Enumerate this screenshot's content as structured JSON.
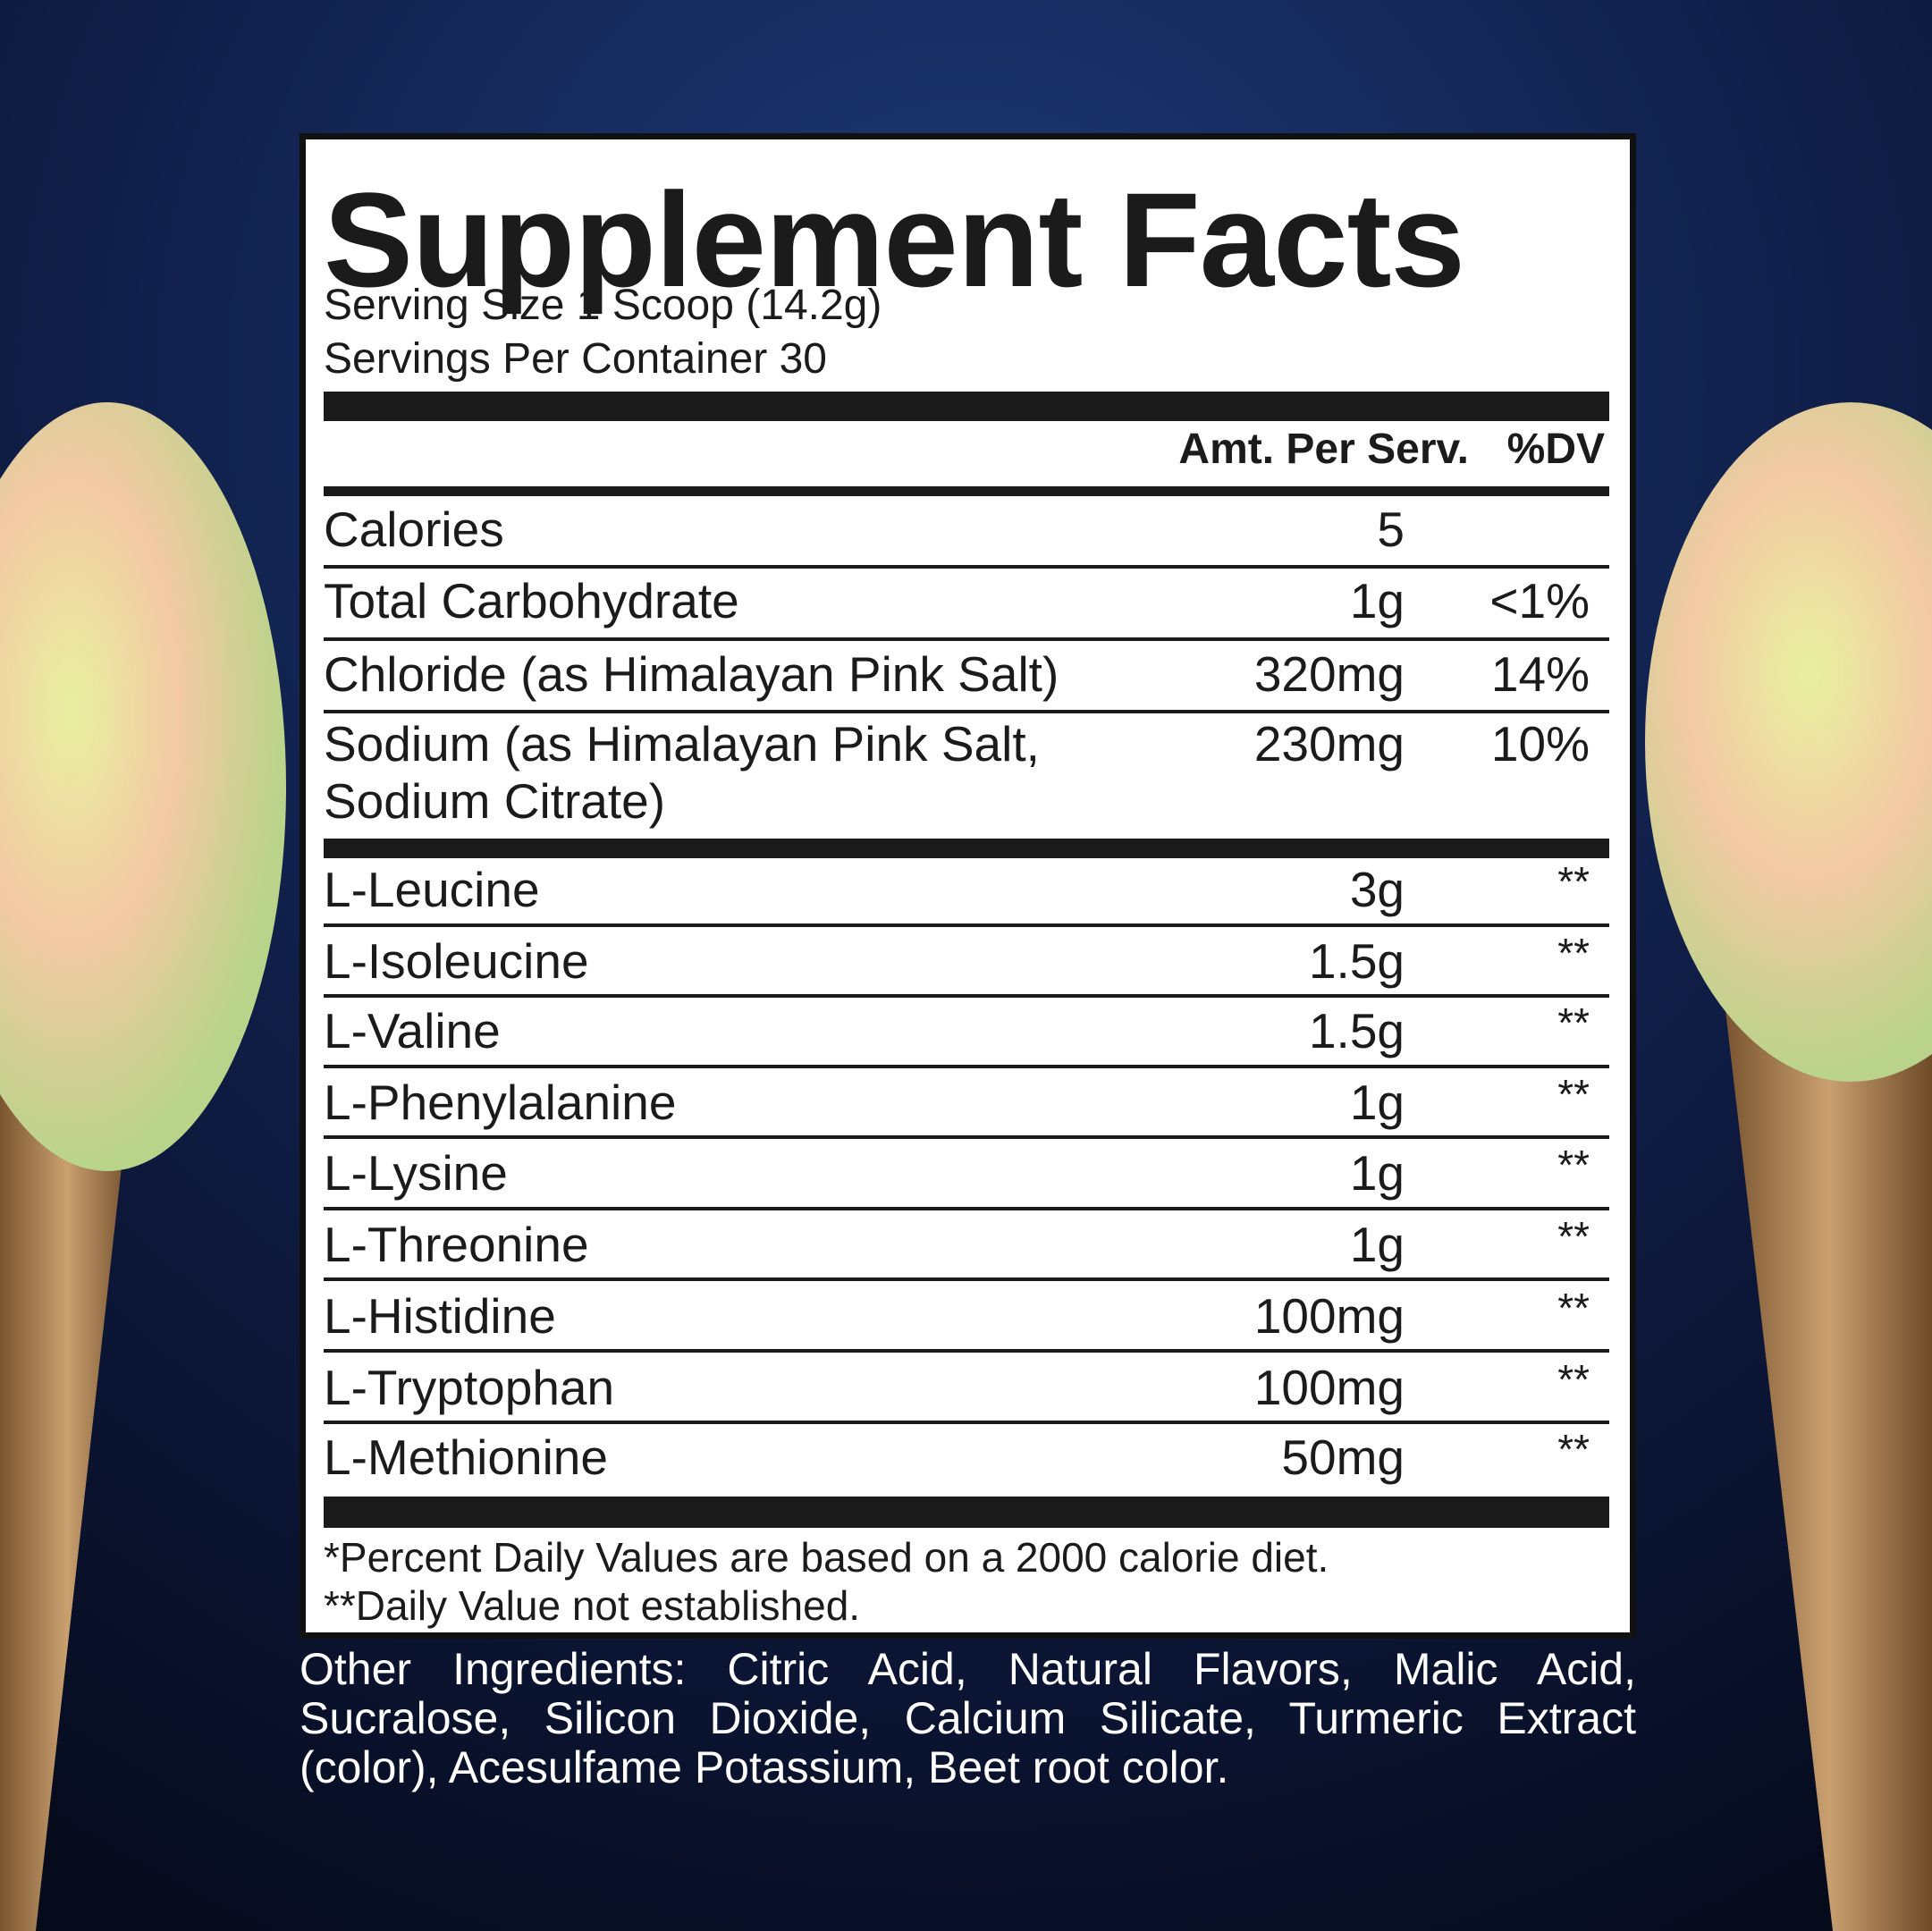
{
  "title": "Supplement Facts",
  "serving_size": "Serving Size 1 Scoop (14.2g)",
  "servings_per_container": "Servings Per Container 30",
  "header": {
    "amount": "Amt. Per Serv.",
    "dv": "%DV"
  },
  "rows": [
    {
      "name": "Calories",
      "amount": "5"
    },
    {
      "name": "Total Carbohydrate",
      "amount": "1g",
      "dv": "<1%"
    },
    {
      "name": "Chloride (as Himalayan Pink Salt)",
      "amount": "320mg",
      "dv": "14%"
    },
    {
      "name": [
        "Sodium (as Himalayan Pink Salt,",
        "Sodium Citrate)"
      ],
      "amount": "230mg",
      "dv": "10%"
    },
    {
      "name": "L-Leucine",
      "amount": "3g",
      "dv": "**"
    },
    {
      "name": "L-Isoleucine",
      "amount": "1.5g",
      "dv": "**"
    },
    {
      "name": "L-Valine",
      "amount": "1.5g",
      "dv": "**"
    },
    {
      "name": "L-Phenylalanine",
      "amount": "1g",
      "dv": "**"
    },
    {
      "name": "L-Lysine",
      "amount": "1g",
      "dv": "**"
    },
    {
      "name": "L-Threonine",
      "amount": "1g",
      "dv": "**"
    },
    {
      "name": "L-Histidine",
      "amount": "100mg",
      "dv": "**"
    },
    {
      "name": "L-Tryptophan",
      "amount": "100mg",
      "dv": "**"
    },
    {
      "name": "L-Methionine",
      "amount": "50mg",
      "dv": "**"
    }
  ],
  "footnotes": [
    "*Percent Daily Values are based on a 2000 calorie diet.",
    "**Daily Value not established."
  ],
  "other_ingredients": "Other Ingredients: Citric Acid, Natural Flavors, Malic Acid, Sucralose, Silicon Dioxide, Calcium Silicate, Turmeric Extract (color), Acesulfame Potassium, Beet root color."
}
